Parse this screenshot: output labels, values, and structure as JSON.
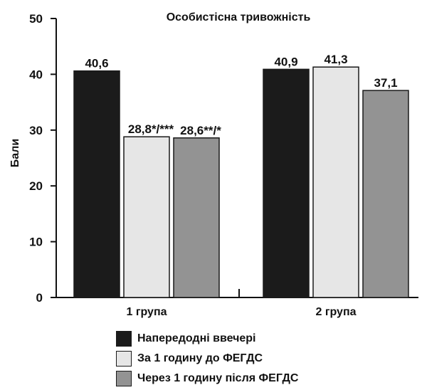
{
  "chart_data": {
    "type": "bar",
    "title": "Особистісна тривожність",
    "ylabel": "Бали",
    "xlabel": "",
    "ylim": [
      0,
      50
    ],
    "yticks": [
      "0",
      "10",
      "20",
      "30",
      "40",
      "50"
    ],
    "categories": [
      "1 група",
      "2 група"
    ],
    "series": [
      {
        "name": "Напередодні ввечері",
        "color": "#1b1b1b",
        "values": [
          40.6,
          40.9
        ],
        "labels": [
          "40,6",
          "40,9"
        ]
      },
      {
        "name": "За 1 годину до ФЕГДС",
        "color": "#e6e6e6",
        "values": [
          28.8,
          41.3
        ],
        "labels": [
          "28,8*/***",
          "41,3"
        ]
      },
      {
        "name": "Через 1 годину після ФЕГДС",
        "color": "#939393",
        "values": [
          28.6,
          37.1
        ],
        "labels": [
          "28,6**/*",
          "37,1"
        ]
      }
    ],
    "legend_position": "bottom",
    "grid": false
  }
}
